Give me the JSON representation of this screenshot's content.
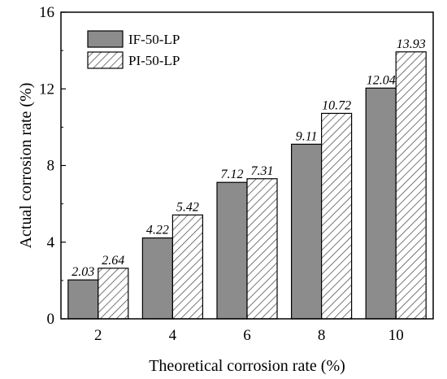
{
  "chart_data": {
    "type": "bar",
    "title": "",
    "xlabel": "Theoretical corrosion rate (%)",
    "ylabel": "Actual corrosion rate (%)",
    "categories": [
      "2",
      "4",
      "6",
      "8",
      "10"
    ],
    "ylim": [
      0,
      16
    ],
    "yticks": [
      "0",
      "4",
      "8",
      "12",
      "16"
    ],
    "series": [
      {
        "name": "IF-50-LP",
        "values": [
          2.03,
          4.22,
          7.12,
          9.11,
          12.04
        ],
        "labels": [
          "2.03",
          "4.22",
          "7.12",
          "9.11",
          "12.04"
        ],
        "fill": "solid",
        "color": "#8c8c8c"
      },
      {
        "name": "PI-50-LP",
        "values": [
          2.64,
          5.42,
          7.31,
          10.72,
          13.93
        ],
        "labels": [
          "2.64",
          "5.42",
          "7.31",
          "10.72",
          "13.93"
        ],
        "fill": "hatched",
        "color": "#d9d9d9"
      }
    ],
    "legend_position": "top-left",
    "grid": false
  }
}
